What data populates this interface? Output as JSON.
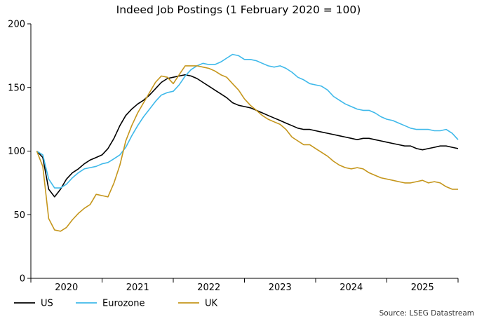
{
  "chart_data": {
    "type": "line",
    "title": "Indeed Job Postings (1 February 2020 = 100)",
    "xlabel": "",
    "ylabel": "",
    "ylim": [
      0,
      200
    ],
    "yticks": [
      0,
      50,
      100,
      150,
      200
    ],
    "xlim": [
      2020.0,
      2026.0
    ],
    "xtick_labels": [
      "2020",
      "2021",
      "2022",
      "2023",
      "2024",
      "2025"
    ],
    "grid": false,
    "legend_position": "bottom-left",
    "source": "Source: LSEG Datastream",
    "series": [
      {
        "name": "US",
        "color": "#000000",
        "points": [
          [
            2020.083,
            100
          ],
          [
            2020.167,
            95
          ],
          [
            2020.25,
            70
          ],
          [
            2020.333,
            64
          ],
          [
            2020.417,
            70
          ],
          [
            2020.5,
            78
          ],
          [
            2020.583,
            83
          ],
          [
            2020.667,
            86
          ],
          [
            2020.75,
            90
          ],
          [
            2020.833,
            93
          ],
          [
            2020.917,
            95
          ],
          [
            2021.0,
            97
          ],
          [
            2021.083,
            102
          ],
          [
            2021.167,
            110
          ],
          [
            2021.25,
            120
          ],
          [
            2021.333,
            128
          ],
          [
            2021.417,
            133
          ],
          [
            2021.5,
            137
          ],
          [
            2021.583,
            140
          ],
          [
            2021.667,
            144
          ],
          [
            2021.75,
            149
          ],
          [
            2021.833,
            154
          ],
          [
            2021.917,
            157
          ],
          [
            2022.0,
            158
          ],
          [
            2022.083,
            159
          ],
          [
            2022.167,
            160
          ],
          [
            2022.25,
            159
          ],
          [
            2022.333,
            157
          ],
          [
            2022.417,
            154
          ],
          [
            2022.5,
            151
          ],
          [
            2022.583,
            148
          ],
          [
            2022.667,
            145
          ],
          [
            2022.75,
            142
          ],
          [
            2022.833,
            138
          ],
          [
            2022.917,
            136
          ],
          [
            2023.0,
            135
          ],
          [
            2023.083,
            134
          ],
          [
            2023.167,
            132
          ],
          [
            2023.25,
            130
          ],
          [
            2023.333,
            128
          ],
          [
            2023.417,
            126
          ],
          [
            2023.5,
            124
          ],
          [
            2023.583,
            122
          ],
          [
            2023.667,
            120
          ],
          [
            2023.75,
            118
          ],
          [
            2023.833,
            117
          ],
          [
            2023.917,
            117
          ],
          [
            2024.0,
            116
          ],
          [
            2024.083,
            115
          ],
          [
            2024.167,
            114
          ],
          [
            2024.25,
            113
          ],
          [
            2024.333,
            112
          ],
          [
            2024.417,
            111
          ],
          [
            2024.5,
            110
          ],
          [
            2024.583,
            109
          ],
          [
            2024.667,
            110
          ],
          [
            2024.75,
            110
          ],
          [
            2024.833,
            109
          ],
          [
            2024.917,
            108
          ],
          [
            2025.0,
            107
          ],
          [
            2025.083,
            106
          ],
          [
            2025.167,
            105
          ],
          [
            2025.25,
            104
          ],
          [
            2025.333,
            104
          ],
          [
            2025.417,
            102
          ],
          [
            2025.5,
            101
          ],
          [
            2025.583,
            102
          ],
          [
            2025.667,
            103
          ],
          [
            2025.75,
            104
          ],
          [
            2025.833,
            104
          ],
          [
            2025.917,
            103
          ],
          [
            2026.0,
            102
          ]
        ]
      },
      {
        "name": "Eurozone",
        "color": "#3fb9ea",
        "points": [
          [
            2020.083,
            100
          ],
          [
            2020.167,
            97
          ],
          [
            2020.25,
            78
          ],
          [
            2020.333,
            71
          ],
          [
            2020.417,
            71
          ],
          [
            2020.5,
            74
          ],
          [
            2020.583,
            79
          ],
          [
            2020.667,
            83
          ],
          [
            2020.75,
            86
          ],
          [
            2020.833,
            87
          ],
          [
            2020.917,
            88
          ],
          [
            2021.0,
            90
          ],
          [
            2021.083,
            91
          ],
          [
            2021.167,
            94
          ],
          [
            2021.25,
            97
          ],
          [
            2021.333,
            103
          ],
          [
            2021.417,
            112
          ],
          [
            2021.5,
            120
          ],
          [
            2021.583,
            127
          ],
          [
            2021.667,
            133
          ],
          [
            2021.75,
            139
          ],
          [
            2021.833,
            144
          ],
          [
            2021.917,
            146
          ],
          [
            2022.0,
            147
          ],
          [
            2022.083,
            152
          ],
          [
            2022.167,
            159
          ],
          [
            2022.25,
            164
          ],
          [
            2022.333,
            167
          ],
          [
            2022.417,
            169
          ],
          [
            2022.5,
            168
          ],
          [
            2022.583,
            168
          ],
          [
            2022.667,
            170
          ],
          [
            2022.75,
            173
          ],
          [
            2022.833,
            176
          ],
          [
            2022.917,
            175
          ],
          [
            2023.0,
            172
          ],
          [
            2023.083,
            172
          ],
          [
            2023.167,
            171
          ],
          [
            2023.25,
            169
          ],
          [
            2023.333,
            167
          ],
          [
            2023.417,
            166
          ],
          [
            2023.5,
            167
          ],
          [
            2023.583,
            165
          ],
          [
            2023.667,
            162
          ],
          [
            2023.75,
            158
          ],
          [
            2023.833,
            156
          ],
          [
            2023.917,
            153
          ],
          [
            2024.0,
            152
          ],
          [
            2024.083,
            151
          ],
          [
            2024.167,
            148
          ],
          [
            2024.25,
            143
          ],
          [
            2024.333,
            140
          ],
          [
            2024.417,
            137
          ],
          [
            2024.5,
            135
          ],
          [
            2024.583,
            133
          ],
          [
            2024.667,
            132
          ],
          [
            2024.75,
            132
          ],
          [
            2024.833,
            130
          ],
          [
            2024.917,
            127
          ],
          [
            2025.0,
            125
          ],
          [
            2025.083,
            124
          ],
          [
            2025.167,
            122
          ],
          [
            2025.25,
            120
          ],
          [
            2025.333,
            118
          ],
          [
            2025.417,
            117
          ],
          [
            2025.5,
            117
          ],
          [
            2025.583,
            117
          ],
          [
            2025.667,
            116
          ],
          [
            2025.75,
            116
          ],
          [
            2025.833,
            117
          ],
          [
            2025.917,
            114
          ],
          [
            2026.0,
            109
          ]
        ]
      },
      {
        "name": "UK",
        "color": "#c5961c",
        "points": [
          [
            2020.083,
            100
          ],
          [
            2020.167,
            88
          ],
          [
            2020.25,
            47
          ],
          [
            2020.333,
            38
          ],
          [
            2020.417,
            37
          ],
          [
            2020.5,
            40
          ],
          [
            2020.583,
            46
          ],
          [
            2020.667,
            51
          ],
          [
            2020.75,
            55
          ],
          [
            2020.833,
            58
          ],
          [
            2020.917,
            66
          ],
          [
            2021.0,
            65
          ],
          [
            2021.083,
            64
          ],
          [
            2021.167,
            75
          ],
          [
            2021.25,
            89
          ],
          [
            2021.333,
            108
          ],
          [
            2021.417,
            120
          ],
          [
            2021.5,
            130
          ],
          [
            2021.583,
            138
          ],
          [
            2021.667,
            146
          ],
          [
            2021.75,
            154
          ],
          [
            2021.833,
            159
          ],
          [
            2021.917,
            158
          ],
          [
            2022.0,
            153
          ],
          [
            2022.083,
            160
          ],
          [
            2022.167,
            167
          ],
          [
            2022.25,
            167
          ],
          [
            2022.333,
            167
          ],
          [
            2022.417,
            166
          ],
          [
            2022.5,
            165
          ],
          [
            2022.583,
            163
          ],
          [
            2022.667,
            160
          ],
          [
            2022.75,
            158
          ],
          [
            2022.833,
            153
          ],
          [
            2022.917,
            148
          ],
          [
            2023.0,
            141
          ],
          [
            2023.083,
            136
          ],
          [
            2023.167,
            132
          ],
          [
            2023.25,
            128
          ],
          [
            2023.333,
            125
          ],
          [
            2023.417,
            123
          ],
          [
            2023.5,
            121
          ],
          [
            2023.583,
            117
          ],
          [
            2023.667,
            111
          ],
          [
            2023.75,
            108
          ],
          [
            2023.833,
            105
          ],
          [
            2023.917,
            105
          ],
          [
            2024.0,
            102
          ],
          [
            2024.083,
            99
          ],
          [
            2024.167,
            96
          ],
          [
            2024.25,
            92
          ],
          [
            2024.333,
            89
          ],
          [
            2024.417,
            87
          ],
          [
            2024.5,
            86
          ],
          [
            2024.583,
            87
          ],
          [
            2024.667,
            86
          ],
          [
            2024.75,
            83
          ],
          [
            2024.833,
            81
          ],
          [
            2024.917,
            79
          ],
          [
            2025.0,
            78
          ],
          [
            2025.083,
            77
          ],
          [
            2025.167,
            76
          ],
          [
            2025.25,
            75
          ],
          [
            2025.333,
            75
          ],
          [
            2025.417,
            76
          ],
          [
            2025.5,
            77
          ],
          [
            2025.583,
            75
          ],
          [
            2025.667,
            76
          ],
          [
            2025.75,
            75
          ],
          [
            2025.833,
            72
          ],
          [
            2025.917,
            70
          ],
          [
            2026.0,
            70
          ]
        ]
      }
    ]
  }
}
